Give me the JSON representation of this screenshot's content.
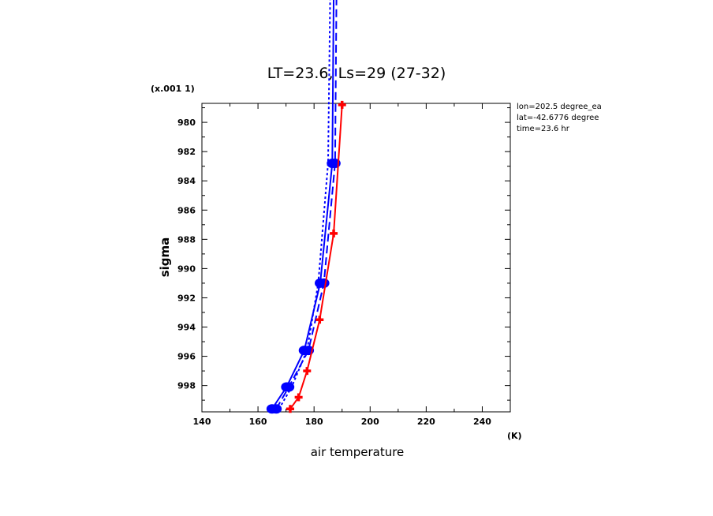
{
  "chart_data": {
    "type": "line",
    "title": "LT=23.6, Ls=29 (27-32)",
    "xlabel": "air temperature",
    "xunit": "(K)",
    "ylabel": "sigma",
    "yscale_label": "(x.001 1)",
    "xlim": [
      140,
      250
    ],
    "ylim": [
      999.8,
      978.7
    ],
    "x_ticks": [
      140,
      160,
      180,
      200,
      220,
      240
    ],
    "y_ticks": [
      980,
      982,
      984,
      986,
      988,
      990,
      992,
      994,
      996,
      998
    ],
    "annotations": [
      "lon=202.5 degree_ea",
      "lat=-42.6776 degree",
      "time=23.6 hr"
    ],
    "grid": false,
    "series": [
      {
        "color": "#0000ff",
        "style": "solid",
        "marker": "dot",
        "points": [
          [
            165.0,
            999.6
          ],
          [
            170.2,
            998.1
          ],
          [
            176.5,
            995.6
          ],
          [
            182.2,
            991.0
          ],
          [
            186.5,
            982.8
          ],
          [
            187.5,
            960.0
          ]
        ]
      },
      {
        "color": "#0000ff",
        "style": "dashed",
        "marker": "dot",
        "points": [
          [
            166.5,
            999.6
          ],
          [
            171.0,
            998.1
          ],
          [
            178.0,
            995.6
          ],
          [
            183.5,
            991.0
          ],
          [
            187.5,
            982.8
          ],
          [
            188.5,
            960.0
          ]
        ]
      },
      {
        "color": "#0000ff",
        "style": "dotted",
        "marker": "none",
        "points": [
          [
            167.5,
            999.6
          ],
          [
            172.0,
            998.1
          ],
          [
            177.5,
            995.6
          ],
          [
            181.5,
            991.0
          ],
          [
            185.0,
            982.8
          ],
          [
            186.5,
            960.0
          ]
        ]
      },
      {
        "color": "#ff0000",
        "style": "solid",
        "marker": "plus",
        "points": [
          [
            171.5,
            999.6
          ],
          [
            174.5,
            998.8
          ],
          [
            177.5,
            997.0
          ],
          [
            182.0,
            993.5
          ],
          [
            187.0,
            987.6
          ],
          [
            190.0,
            978.8
          ]
        ]
      }
    ]
  }
}
